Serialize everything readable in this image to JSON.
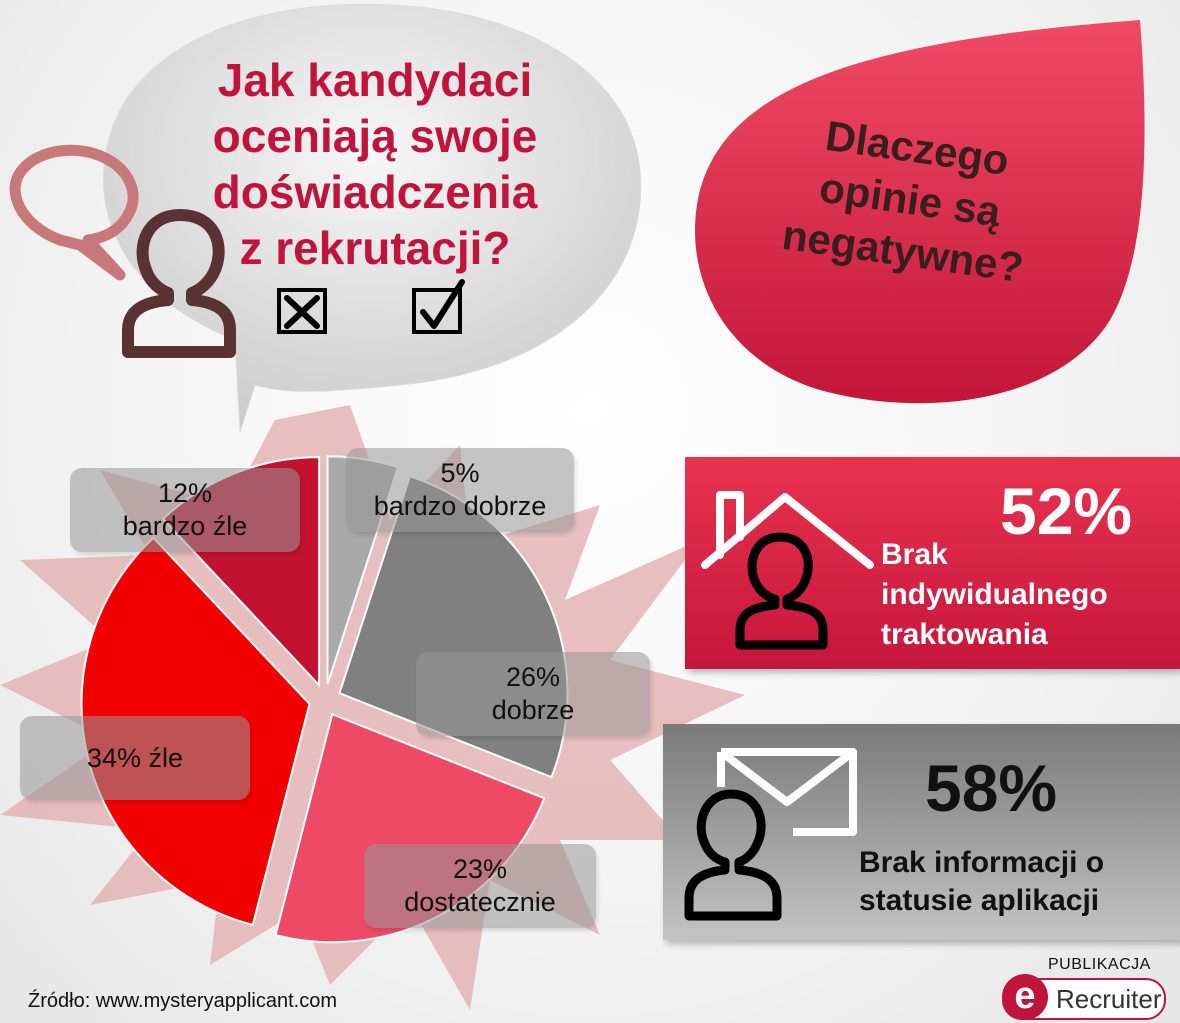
{
  "question": {
    "lines": [
      "Jak kandydaci",
      "oceniają swoje",
      "doświadczenia",
      "z rekrutacji?"
    ]
  },
  "why": {
    "lines": [
      "Dlaczego",
      "opinie są",
      "negatywne?"
    ]
  },
  "chart_data": {
    "type": "pie",
    "unit": "%",
    "slices": [
      {
        "label": "bardzo dobrze",
        "value": 5,
        "display": "5%",
        "color": "#a9a9a9"
      },
      {
        "label": "dobrze",
        "value": 26,
        "display": "26%",
        "color": "#808080"
      },
      {
        "label": "dostatecznie",
        "value": 23,
        "display": "23%",
        "color": "#ee4a66"
      },
      {
        "label": "źle",
        "value": 34,
        "display": "34% źle",
        "color": "#f20000"
      },
      {
        "label": "bardzo źle",
        "value": 12,
        "display": "12%",
        "color": "#c3122f"
      }
    ]
  },
  "reasons": [
    {
      "percent": "52%",
      "lines": [
        "Brak",
        "indywidualnego",
        "traktowania"
      ],
      "icon": "house-person-icon",
      "color": "#d42a45"
    },
    {
      "percent": "58%",
      "lines": [
        "Brak informacji o",
        "statusie aplikacji"
      ],
      "icon": "mail-person-icon",
      "color": "#8c8c8c"
    }
  ],
  "footer": {
    "source": "Źródło: www.mysteryapplicant.com",
    "publisher_label": "PUBLIKACJA",
    "logo_letter": "e",
    "logo_text": "Recruiter"
  },
  "colors": {
    "accent": "#c0143c",
    "starburst": "#e3b0b0"
  }
}
